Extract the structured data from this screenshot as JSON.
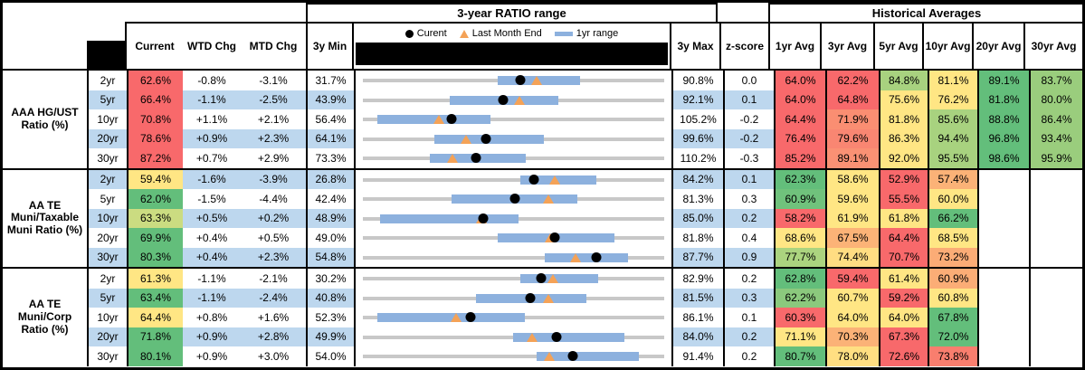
{
  "header": {
    "ratio_title": "3-year RATIO range",
    "hist_title": "Historical Averages",
    "col_current": "Current",
    "col_wtd": "WTD Chg",
    "col_mtd": "MTD Chg",
    "col_3y_min": "3y Min",
    "col_3y_max": "3y Max",
    "col_zscore": "z-score",
    "avg_cols": [
      "1yr Avg",
      "3yr Avg",
      "5yr Avg",
      "10yr Avg",
      "20yr Avg",
      "30yr Avg"
    ],
    "legend": {
      "current": "Curent",
      "last_month": "Last Month End",
      "range": "1yr range"
    },
    "legend_icons": [
      "current-dot-icon",
      "last-month-triangle-icon",
      "one-year-range-bar-icon"
    ]
  },
  "colors": {
    "scale_red": "#F8696B",
    "scale_yellow": "#FFE684",
    "scale_green": "#63BE7B",
    "stripe_blue": "#BDD7EE",
    "range_bar_blue": "#8DB1DE",
    "track_gray": "#C8C8C8",
    "current_dot": "#000000",
    "last_month_triangle": "#F4A257"
  },
  "sections": [
    {
      "label": "AAA HG/UST Ratio (%)",
      "rows": [
        {
          "term": "2yr",
          "current": "62.6%",
          "current_bg": "#F8696B",
          "wtd": "-0.8%",
          "mtd": "-3.1%",
          "min": "31.7%",
          "max": "90.8%",
          "z": "0.0",
          "cur_v": 62.6,
          "mtd_v": -3.1,
          "min_v": 31.7,
          "max_v": 90.8,
          "lo": 58.1,
          "hi": 74.3,
          "avgs": [
            {
              "v": "64.0%",
              "bg": "#F8696B"
            },
            {
              "v": "62.2%",
              "bg": "#F8696B"
            },
            {
              "v": "84.8%",
              "bg": "#A8D27F"
            },
            {
              "v": "81.1%",
              "bg": "#FFE684"
            },
            {
              "v": "89.1%",
              "bg": "#63BE7B"
            },
            {
              "v": "83.7%",
              "bg": "#9ACD7D"
            }
          ]
        },
        {
          "term": "5yr",
          "current": "66.4%",
          "current_bg": "#F8696B",
          "wtd": "-1.1%",
          "mtd": "-2.5%",
          "min": "43.9%",
          "max": "92.1%",
          "z": "0.1",
          "cur_v": 66.4,
          "mtd_v": -2.5,
          "min_v": 43.9,
          "max_v": 92.1,
          "lo": 57.8,
          "hi": 75.2,
          "avgs": [
            {
              "v": "64.0%",
              "bg": "#F8696B"
            },
            {
              "v": "64.8%",
              "bg": "#F8696B"
            },
            {
              "v": "75.6%",
              "bg": "#FFE684"
            },
            {
              "v": "76.2%",
              "bg": "#FFE684"
            },
            {
              "v": "81.8%",
              "bg": "#63BE7B"
            },
            {
              "v": "80.0%",
              "bg": "#9ACD7D"
            }
          ]
        },
        {
          "term": "10yr",
          "current": "70.8%",
          "current_bg": "#F8696B",
          "wtd": "+1.1%",
          "mtd": "+2.1%",
          "min": "56.4%",
          "max": "105.2%",
          "z": "-0.2",
          "cur_v": 70.8,
          "mtd_v": 2.1,
          "min_v": 56.4,
          "max_v": 105.2,
          "lo": 58.7,
          "hi": 77.0,
          "avgs": [
            {
              "v": "64.4%",
              "bg": "#F8696B"
            },
            {
              "v": "71.9%",
              "bg": "#FA8E72"
            },
            {
              "v": "81.8%",
              "bg": "#FFE684"
            },
            {
              "v": "85.6%",
              "bg": "#A8D27F"
            },
            {
              "v": "88.8%",
              "bg": "#63BE7B"
            },
            {
              "v": "86.4%",
              "bg": "#9ACD7D"
            }
          ]
        },
        {
          "term": "20yr",
          "current": "78.6%",
          "current_bg": "#F8696B",
          "wtd": "+0.9%",
          "mtd": "+2.3%",
          "min": "64.1%",
          "max": "99.6%",
          "z": "-0.2",
          "cur_v": 78.6,
          "mtd_v": 2.3,
          "min_v": 64.1,
          "max_v": 99.6,
          "lo": 72.5,
          "hi": 85.4,
          "avgs": [
            {
              "v": "76.4%",
              "bg": "#F8696B"
            },
            {
              "v": "79.6%",
              "bg": "#F98672"
            },
            {
              "v": "86.3%",
              "bg": "#FFE684"
            },
            {
              "v": "94.4%",
              "bg": "#A8D27F"
            },
            {
              "v": "96.8%",
              "bg": "#63BE7B"
            },
            {
              "v": "93.4%",
              "bg": "#9ACD7D"
            }
          ]
        },
        {
          "term": "30yr",
          "current": "87.2%",
          "current_bg": "#F8696B",
          "wtd": "+0.7%",
          "mtd": "+2.9%",
          "min": "73.3%",
          "max": "110.2%",
          "z": "-0.3",
          "cur_v": 87.2,
          "mtd_v": 2.9,
          "min_v": 73.3,
          "max_v": 110.2,
          "lo": 81.5,
          "hi": 93.2,
          "avgs": [
            {
              "v": "85.2%",
              "bg": "#F8696B"
            },
            {
              "v": "89.1%",
              "bg": "#FA9174"
            },
            {
              "v": "92.0%",
              "bg": "#FFE684"
            },
            {
              "v": "95.5%",
              "bg": "#A8D27F"
            },
            {
              "v": "98.6%",
              "bg": "#63BE7B"
            },
            {
              "v": "95.9%",
              "bg": "#9ACD7D"
            }
          ]
        }
      ]
    },
    {
      "label": "AA TE Muni/Taxable Muni Ratio (%)",
      "rows": [
        {
          "term": "2yr",
          "current": "59.4%",
          "current_bg": "#FFE684",
          "wtd": "-1.6%",
          "mtd": "-3.9%",
          "min": "26.8%",
          "max": "84.2%",
          "z": "0.1",
          "cur_v": 59.4,
          "mtd_v": -3.9,
          "min_v": 26.8,
          "max_v": 84.2,
          "lo": 56.8,
          "hi": 71.2,
          "avgs": [
            {
              "v": "62.3%",
              "bg": "#63BE7B"
            },
            {
              "v": "58.6%",
              "bg": "#FFE684"
            },
            {
              "v": "52.9%",
              "bg": "#F8696B"
            },
            {
              "v": "57.4%",
              "bg": "#FBB277"
            },
            {
              "v": "",
              "bg": ""
            },
            {
              "v": "",
              "bg": ""
            }
          ]
        },
        {
          "term": "5yr",
          "current": "62.0%",
          "current_bg": "#63BE7B",
          "wtd": "-1.5%",
          "mtd": "-4.4%",
          "min": "42.4%",
          "max": "81.3%",
          "z": "0.3",
          "cur_v": 62.0,
          "mtd_v": -4.4,
          "min_v": 42.4,
          "max_v": 81.3,
          "lo": 53.8,
          "hi": 70.1,
          "avgs": [
            {
              "v": "60.9%",
              "bg": "#70C27C"
            },
            {
              "v": "59.6%",
              "bg": "#FFE684"
            },
            {
              "v": "55.5%",
              "bg": "#F8696B"
            },
            {
              "v": "60.0%",
              "bg": "#FFE684"
            },
            {
              "v": "",
              "bg": ""
            },
            {
              "v": "",
              "bg": ""
            }
          ]
        },
        {
          "term": "10yr",
          "current": "63.3%",
          "current_bg": "#CBDC81",
          "wtd": "+0.5%",
          "mtd": "+0.2%",
          "min": "48.9%",
          "max": "85.0%",
          "z": "0.2",
          "cur_v": 63.3,
          "mtd_v": 0.2,
          "min_v": 48.9,
          "max_v": 85.0,
          "lo": 51.0,
          "hi": 67.6,
          "avgs": [
            {
              "v": "58.2%",
              "bg": "#F8696B"
            },
            {
              "v": "61.9%",
              "bg": "#FFE684"
            },
            {
              "v": "61.8%",
              "bg": "#FFE684"
            },
            {
              "v": "66.2%",
              "bg": "#63BE7B"
            },
            {
              "v": "",
              "bg": ""
            },
            {
              "v": "",
              "bg": ""
            }
          ]
        },
        {
          "term": "20yr",
          "current": "69.9%",
          "current_bg": "#63BE7B",
          "wtd": "+0.4%",
          "mtd": "+0.5%",
          "min": "49.0%",
          "max": "81.8%",
          "z": "0.4",
          "cur_v": 69.9,
          "mtd_v": 0.5,
          "min_v": 49.0,
          "max_v": 81.8,
          "lo": 63.7,
          "hi": 76.4,
          "avgs": [
            {
              "v": "68.6%",
              "bg": "#FFE684"
            },
            {
              "v": "67.5%",
              "bg": "#FCB377"
            },
            {
              "v": "64.4%",
              "bg": "#F8696B"
            },
            {
              "v": "68.5%",
              "bg": "#FFE684"
            },
            {
              "v": "",
              "bg": ""
            },
            {
              "v": "",
              "bg": ""
            }
          ]
        },
        {
          "term": "30yr",
          "current": "80.3%",
          "current_bg": "#63BE7B",
          "wtd": "+0.4%",
          "mtd": "+2.3%",
          "min": "54.8%",
          "max": "87.7%",
          "z": "0.9",
          "cur_v": 80.3,
          "mtd_v": 2.3,
          "min_v": 54.8,
          "max_v": 87.7,
          "lo": 74.7,
          "hi": 83.7,
          "avgs": [
            {
              "v": "77.7%",
              "bg": "#ABD47F"
            },
            {
              "v": "74.4%",
              "bg": "#FFDD82"
            },
            {
              "v": "70.7%",
              "bg": "#F8696B"
            },
            {
              "v": "73.2%",
              "bg": "#FBAC76"
            },
            {
              "v": "",
              "bg": ""
            },
            {
              "v": "",
              "bg": ""
            }
          ]
        }
      ]
    },
    {
      "label": "AA TE Muni/Corp Ratio (%)",
      "rows": [
        {
          "term": "2yr",
          "current": "61.3%",
          "current_bg": "#FFE684",
          "wtd": "-1.1%",
          "mtd": "-2.1%",
          "min": "30.2%",
          "max": "82.9%",
          "z": "0.2",
          "cur_v": 61.3,
          "mtd_v": -2.1,
          "min_v": 30.2,
          "max_v": 82.9,
          "lo": 57.8,
          "hi": 71.4,
          "avgs": [
            {
              "v": "62.8%",
              "bg": "#63BE7B"
            },
            {
              "v": "59.4%",
              "bg": "#F8696B"
            },
            {
              "v": "61.4%",
              "bg": "#FFE684"
            },
            {
              "v": "60.9%",
              "bg": "#FBAD76"
            },
            {
              "v": "",
              "bg": ""
            },
            {
              "v": "",
              "bg": ""
            }
          ]
        },
        {
          "term": "5yr",
          "current": "63.4%",
          "current_bg": "#63BE7B",
          "wtd": "-1.1%",
          "mtd": "-2.4%",
          "min": "40.8%",
          "max": "81.5%",
          "z": "0.3",
          "cur_v": 63.4,
          "mtd_v": -2.4,
          "min_v": 40.8,
          "max_v": 81.5,
          "lo": 56.1,
          "hi": 71.0,
          "avgs": [
            {
              "v": "62.2%",
              "bg": "#8BC97D"
            },
            {
              "v": "60.7%",
              "bg": "#FFE684"
            },
            {
              "v": "59.2%",
              "bg": "#F8696B"
            },
            {
              "v": "60.8%",
              "bg": "#FFE684"
            },
            {
              "v": "",
              "bg": ""
            },
            {
              "v": "",
              "bg": ""
            }
          ]
        },
        {
          "term": "10yr",
          "current": "64.4%",
          "current_bg": "#FFE684",
          "wtd": "+0.8%",
          "mtd": "+1.6%",
          "min": "52.3%",
          "max": "86.1%",
          "z": "0.1",
          "cur_v": 64.4,
          "mtd_v": 1.6,
          "min_v": 52.3,
          "max_v": 86.1,
          "lo": 53.9,
          "hi": 70.5,
          "avgs": [
            {
              "v": "60.3%",
              "bg": "#F8696B"
            },
            {
              "v": "64.0%",
              "bg": "#FFE684"
            },
            {
              "v": "64.0%",
              "bg": "#FFE684"
            },
            {
              "v": "67.8%",
              "bg": "#63BE7B"
            },
            {
              "v": "",
              "bg": ""
            },
            {
              "v": "",
              "bg": ""
            }
          ]
        },
        {
          "term": "20yr",
          "current": "71.8%",
          "current_bg": "#63BE7B",
          "wtd": "+0.9%",
          "mtd": "+2.8%",
          "min": "49.9%",
          "max": "84.0%",
          "z": "0.2",
          "cur_v": 71.8,
          "mtd_v": 2.8,
          "min_v": 49.9,
          "max_v": 84.0,
          "lo": 66.9,
          "hi": 79.5,
          "avgs": [
            {
              "v": "71.1%",
              "bg": "#FFE684"
            },
            {
              "v": "70.3%",
              "bg": "#FBB277"
            },
            {
              "v": "67.3%",
              "bg": "#F8696B"
            },
            {
              "v": "72.0%",
              "bg": "#63BE7B"
            },
            {
              "v": "",
              "bg": ""
            },
            {
              "v": "",
              "bg": ""
            }
          ]
        },
        {
          "term": "30yr",
          "current": "80.1%",
          "current_bg": "#63BE7B",
          "wtd": "+0.9%",
          "mtd": "+3.0%",
          "min": "54.0%",
          "max": "91.4%",
          "z": "0.2",
          "cur_v": 80.1,
          "mtd_v": 3.0,
          "min_v": 54.0,
          "max_v": 91.4,
          "lo": 75.6,
          "hi": 88.3,
          "avgs": [
            {
              "v": "80.7%",
              "bg": "#63BE7B"
            },
            {
              "v": "78.0%",
              "bg": "#FFDF82"
            },
            {
              "v": "72.6%",
              "bg": "#F8696B"
            },
            {
              "v": "73.8%",
              "bg": "#F97E6E"
            },
            {
              "v": "",
              "bg": ""
            },
            {
              "v": "",
              "bg": ""
            }
          ]
        }
      ]
    }
  ],
  "chart_data": {
    "type": "table",
    "title": "3-year RATIO range with Historical Averages",
    "legend": [
      "Curent",
      "Last Month End",
      "1yr range"
    ],
    "note": "Each row is a dot-plot: axis spans 3y Min to 3y Max; blue bar = 1yr range (estimated lo/hi), black dot = current, orange triangle = last month end (current minus MTD change).",
    "groups": [
      {
        "name": "AAA HG/UST Ratio (%)",
        "terms": [
          "2yr",
          "5yr",
          "10yr",
          "20yr",
          "30yr"
        ],
        "current": [
          62.6,
          66.4,
          70.8,
          78.6,
          87.2
        ],
        "axis_min": [
          31.7,
          43.9,
          56.4,
          64.1,
          73.3
        ],
        "axis_max": [
          90.8,
          92.1,
          105.2,
          99.6,
          110.2
        ],
        "one_yr_range": [
          [
            58.1,
            74.3
          ],
          [
            57.8,
            75.2
          ],
          [
            58.7,
            77.0
          ],
          [
            72.5,
            85.4
          ],
          [
            81.5,
            93.2
          ]
        ],
        "last_month_end": [
          65.7,
          68.9,
          68.7,
          76.3,
          84.3
        ],
        "z_score": [
          0.0,
          0.1,
          -0.2,
          -0.2,
          -0.3
        ]
      },
      {
        "name": "AA TE Muni/Taxable Muni Ratio (%)",
        "terms": [
          "2yr",
          "5yr",
          "10yr",
          "20yr",
          "30yr"
        ],
        "current": [
          59.4,
          62.0,
          63.3,
          69.9,
          80.3
        ],
        "axis_min": [
          26.8,
          42.4,
          48.9,
          49.0,
          54.8
        ],
        "axis_max": [
          84.2,
          81.3,
          85.0,
          81.8,
          87.7
        ],
        "one_yr_range": [
          [
            56.8,
            71.2
          ],
          [
            53.8,
            70.1
          ],
          [
            51.0,
            67.6
          ],
          [
            63.7,
            76.4
          ],
          [
            74.7,
            83.7
          ]
        ],
        "last_month_end": [
          63.3,
          66.4,
          63.1,
          69.4,
          78.0
        ],
        "z_score": [
          0.1,
          0.3,
          0.2,
          0.4,
          0.9
        ]
      },
      {
        "name": "AA TE Muni/Corp Ratio (%)",
        "terms": [
          "2yr",
          "5yr",
          "10yr",
          "20yr",
          "30yr"
        ],
        "current": [
          61.3,
          63.4,
          64.4,
          71.8,
          80.1
        ],
        "axis_min": [
          30.2,
          40.8,
          52.3,
          49.9,
          54.0
        ],
        "axis_max": [
          82.9,
          81.5,
          86.1,
          84.0,
          91.4
        ],
        "one_yr_range": [
          [
            57.8,
            71.4
          ],
          [
            56.1,
            71.0
          ],
          [
            53.9,
            70.5
          ],
          [
            66.9,
            79.5
          ],
          [
            75.6,
            88.3
          ]
        ],
        "last_month_end": [
          63.4,
          65.8,
          62.8,
          69.0,
          77.1
        ],
        "z_score": [
          0.2,
          0.3,
          0.1,
          0.2,
          0.2
        ]
      }
    ]
  }
}
